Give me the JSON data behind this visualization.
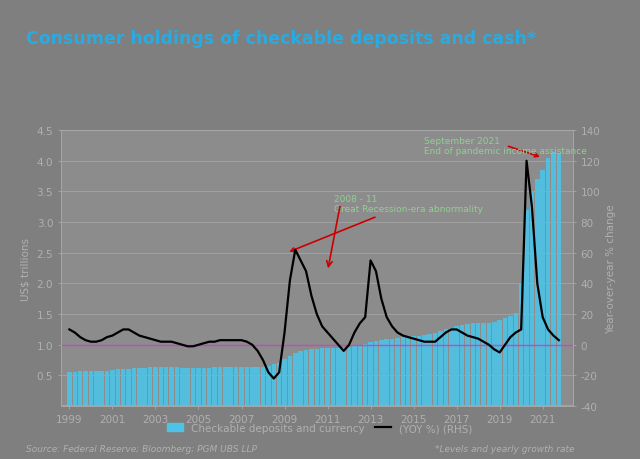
{
  "title": "Consumer holdings of checkable deposits and cash*",
  "title_color": "#29ABE2",
  "background_color": "#7F7F7F",
  "plot_bg_color": "#8C8C8C",
  "ylabel_left": "US$ trillions",
  "ylabel_right": "Year-over-year % change",
  "source_text": "Source: Federal Reserve; Bloomberg; PGM UBS LLP",
  "footnote_text": "*Levels and yearly growth rate",
  "legend_bar": "Checkable deposits and currency",
  "legend_line": "(YOY %) (RHS)",
  "bar_color": "#4DC3E8",
  "line_color": "#000000",
  "hline_color": "#CC44CC",
  "orange_line_color": "#E8A020",
  "grid_color": "#AAAAAA",
  "annotation1_text": "2008 - 11\nGreat Recession-era abnormality",
  "annotation1_color": "#90D090",
  "annotation2_text": "September 2021\nEnd of pandemic income assistance",
  "annotation2_color": "#90D090",
  "tick_color": "#B0B0B0",
  "ylim_left": [
    0,
    4.5
  ],
  "ylim_right": [
    -40,
    140
  ],
  "yticks_left": [
    0.5,
    1.0,
    1.5,
    2.0,
    2.5,
    3.0,
    3.5,
    4.0,
    4.5
  ],
  "yticks_right": [
    -40,
    -20,
    0,
    20,
    40,
    60,
    80,
    100,
    120,
    140
  ],
  "xticks": [
    1999,
    2001,
    2003,
    2005,
    2007,
    2009,
    2011,
    2013,
    2015,
    2017,
    2019,
    2021
  ],
  "bar_years": [
    1999.0,
    1999.25,
    1999.5,
    1999.75,
    2000.0,
    2000.25,
    2000.5,
    2000.75,
    2001.0,
    2001.25,
    2001.5,
    2001.75,
    2002.0,
    2002.25,
    2002.5,
    2002.75,
    2003.0,
    2003.25,
    2003.5,
    2003.75,
    2004.0,
    2004.25,
    2004.5,
    2004.75,
    2005.0,
    2005.25,
    2005.5,
    2005.75,
    2006.0,
    2006.25,
    2006.5,
    2006.75,
    2007.0,
    2007.25,
    2007.5,
    2007.75,
    2008.0,
    2008.25,
    2008.5,
    2008.75,
    2009.0,
    2009.25,
    2009.5,
    2009.75,
    2010.0,
    2010.25,
    2010.5,
    2010.75,
    2011.0,
    2011.25,
    2011.5,
    2011.75,
    2012.0,
    2012.25,
    2012.5,
    2012.75,
    2013.0,
    2013.25,
    2013.5,
    2013.75,
    2014.0,
    2014.25,
    2014.5,
    2014.75,
    2015.0,
    2015.25,
    2015.5,
    2015.75,
    2016.0,
    2016.25,
    2016.5,
    2016.75,
    2017.0,
    2017.25,
    2017.5,
    2017.75,
    2018.0,
    2018.25,
    2018.5,
    2018.75,
    2019.0,
    2019.25,
    2019.5,
    2019.75,
    2020.0,
    2020.25,
    2020.5,
    2020.75,
    2021.0,
    2021.25,
    2021.5,
    2021.75
  ],
  "bar_vals": [
    0.56,
    0.56,
    0.57,
    0.57,
    0.57,
    0.57,
    0.58,
    0.58,
    0.59,
    0.6,
    0.61,
    0.61,
    0.62,
    0.62,
    0.62,
    0.63,
    0.63,
    0.63,
    0.63,
    0.63,
    0.63,
    0.62,
    0.62,
    0.62,
    0.62,
    0.62,
    0.62,
    0.63,
    0.63,
    0.63,
    0.63,
    0.63,
    0.63,
    0.63,
    0.63,
    0.63,
    0.64,
    0.66,
    0.68,
    0.7,
    0.76,
    0.82,
    0.86,
    0.9,
    0.92,
    0.93,
    0.93,
    0.94,
    0.94,
    0.94,
    0.94,
    0.95,
    0.96,
    0.98,
    1.0,
    1.02,
    1.04,
    1.06,
    1.08,
    1.09,
    1.1,
    1.11,
    1.13,
    1.14,
    1.14,
    1.15,
    1.16,
    1.17,
    1.2,
    1.23,
    1.26,
    1.28,
    1.3,
    1.32,
    1.34,
    1.36,
    1.36,
    1.36,
    1.36,
    1.37,
    1.4,
    1.43,
    1.47,
    1.51,
    2.0,
    3.2,
    3.5,
    3.7,
    3.85,
    4.05,
    4.15,
    4.12
  ],
  "line_years": [
    1999.0,
    1999.25,
    1999.5,
    1999.75,
    2000.0,
    2000.25,
    2000.5,
    2000.75,
    2001.0,
    2001.25,
    2001.5,
    2001.75,
    2002.0,
    2002.25,
    2002.5,
    2002.75,
    2003.0,
    2003.25,
    2003.5,
    2003.75,
    2004.0,
    2004.25,
    2004.5,
    2004.75,
    2005.0,
    2005.25,
    2005.5,
    2005.75,
    2006.0,
    2006.25,
    2006.5,
    2006.75,
    2007.0,
    2007.25,
    2007.5,
    2007.75,
    2008.0,
    2008.25,
    2008.5,
    2008.75,
    2009.0,
    2009.25,
    2009.5,
    2009.75,
    2010.0,
    2010.25,
    2010.5,
    2010.75,
    2011.0,
    2011.25,
    2011.5,
    2011.75,
    2012.0,
    2012.25,
    2012.5,
    2012.75,
    2013.0,
    2013.25,
    2013.5,
    2013.75,
    2014.0,
    2014.25,
    2014.5,
    2014.75,
    2015.0,
    2015.25,
    2015.5,
    2015.75,
    2016.0,
    2016.25,
    2016.5,
    2016.75,
    2017.0,
    2017.25,
    2017.5,
    2017.75,
    2018.0,
    2018.25,
    2018.5,
    2018.75,
    2019.0,
    2019.25,
    2019.5,
    2019.75,
    2020.0,
    2020.25,
    2020.5,
    2020.75,
    2021.0,
    2021.25,
    2021.5,
    2021.75
  ],
  "line_yoy": [
    10,
    8,
    5,
    3,
    2,
    2,
    3,
    5,
    6,
    8,
    10,
    10,
    8,
    6,
    5,
    4,
    3,
    2,
    2,
    2,
    1,
    0,
    -1,
    -1,
    0,
    1,
    2,
    2,
    3,
    3,
    3,
    3,
    3,
    2,
    0,
    -4,
    -10,
    -18,
    -22,
    -18,
    8,
    42,
    62,
    55,
    48,
    32,
    20,
    12,
    8,
    4,
    0,
    -4,
    0,
    8,
    14,
    18,
    55,
    48,
    30,
    18,
    12,
    8,
    6,
    5,
    4,
    3,
    2,
    2,
    2,
    5,
    8,
    10,
    10,
    8,
    6,
    5,
    4,
    2,
    0,
    -3,
    -5,
    0,
    5,
    8,
    10,
    120,
    90,
    40,
    18,
    10,
    6,
    3
  ]
}
